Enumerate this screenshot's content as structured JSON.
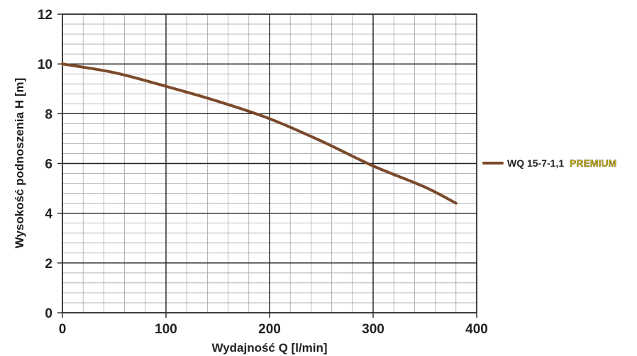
{
  "chart_data": {
    "type": "line",
    "title": "",
    "xlabel": "Wydajność Q [l/min]",
    "ylabel": "Wysokość podnoszenia H [m]",
    "xlim": [
      0,
      400
    ],
    "ylim": [
      0,
      12
    ],
    "x_ticks": [
      0,
      100,
      200,
      300,
      400
    ],
    "y_ticks": [
      0,
      2,
      4,
      6,
      8,
      10,
      12
    ],
    "grid": true,
    "legend_position": "right",
    "series": [
      {
        "name": "WQ 15-7-1,1",
        "name_suffix": "PREMIUM",
        "color": "#7a4a2a",
        "x": [
          0,
          50,
          100,
          150,
          200,
          250,
          300,
          350,
          380
        ],
        "y": [
          10.0,
          9.65,
          9.1,
          8.5,
          7.8,
          6.9,
          5.9,
          5.05,
          4.4
        ]
      }
    ]
  }
}
